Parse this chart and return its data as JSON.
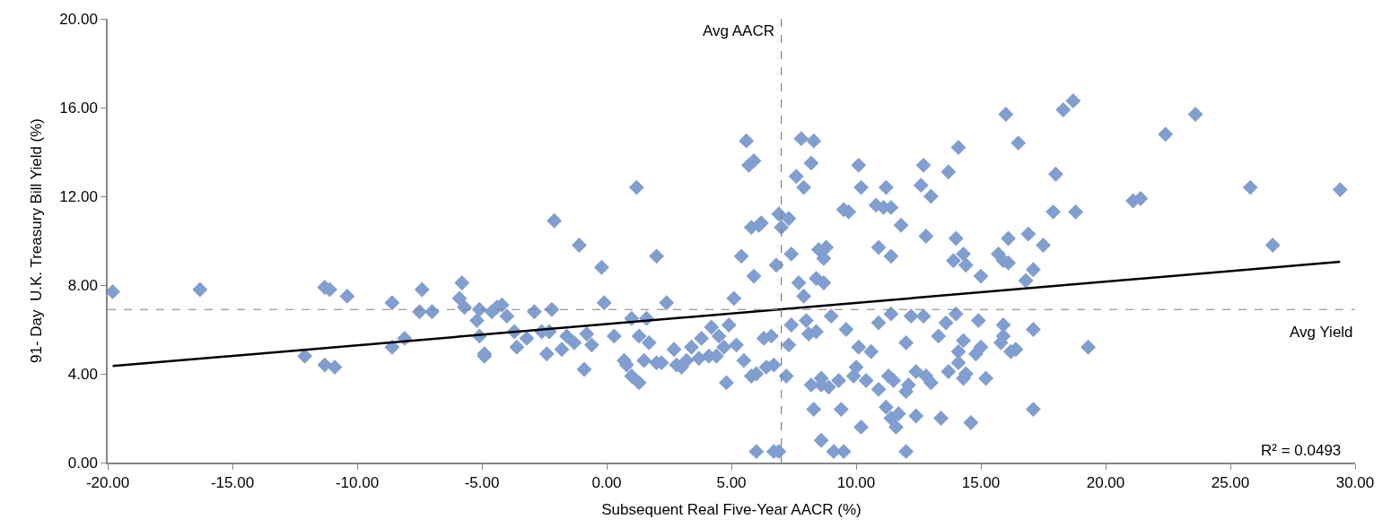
{
  "chart_data": {
    "type": "scatter",
    "xlabel": "Subsequent Real Five-Year AACR (%)",
    "ylabel": "91- Day  U.K. Treasury Bill Yield (%)",
    "xlim": [
      -20,
      30
    ],
    "xticks": [
      {
        "value": -20,
        "label": "-20.00"
      },
      {
        "value": -15,
        "label": "-15.00"
      },
      {
        "value": -10,
        "label": "-10.00"
      },
      {
        "value": -5,
        "label": "-5.00"
      },
      {
        "value": 0,
        "label": "0.00"
      },
      {
        "value": 5,
        "label": "5.00"
      },
      {
        "value": 10,
        "label": "10.00"
      },
      {
        "value": 15,
        "label": "15.00"
      },
      {
        "value": 20,
        "label": "20.00"
      },
      {
        "value": 25,
        "label": "25.00"
      },
      {
        "value": 30,
        "label": "30.00"
      }
    ],
    "ylim": [
      0,
      20
    ],
    "yticks": [
      {
        "value": 0,
        "label": "0.00"
      },
      {
        "value": 4,
        "label": "4.00"
      },
      {
        "value": 8,
        "label": "8.00"
      },
      {
        "value": 12,
        "label": "12.00"
      },
      {
        "value": 16,
        "label": "16.00"
      },
      {
        "value": 20,
        "label": "20.00"
      }
    ],
    "marker": "diamond",
    "series": [
      {
        "color": "#809ecf",
        "x": [
          -19.8,
          -16.3,
          -12.1,
          -11.3,
          -11.1,
          -11.3,
          -10.9,
          -10.4,
          -8.6,
          -8.6,
          -8.1,
          -7.5,
          -7.4,
          -7.0,
          -5.8,
          -5.9,
          -5.7,
          -5.2,
          -5.1,
          -5.1,
          -4.9,
          -4.9,
          -4.6,
          -4.4,
          -4.2,
          -4.0,
          -3.7,
          -3.6,
          -3.2,
          -2.9,
          -2.6,
          -2.4,
          -2.3,
          -2.2,
          -2.1,
          -1.8,
          -1.6,
          -1.3,
          -1.1,
          -0.9,
          -0.8,
          -0.6,
          -0.2,
          -0.1,
          0.3,
          0.7,
          0.8,
          1.0,
          1.0,
          1.2,
          1.3,
          1.3,
          1.5,
          1.6,
          1.7,
          2.0,
          2.0,
          2.2,
          2.4,
          2.7,
          2.8,
          3.0,
          3.2,
          3.4,
          3.7,
          3.8,
          4.1,
          4.2,
          4.4,
          4.5,
          4.7,
          4.8,
          4.9,
          5.1,
          5.2,
          5.4,
          5.5,
          5.6,
          5.7,
          5.8,
          5.8,
          5.9,
          5.9,
          6.0,
          6.0,
          6.1,
          6.2,
          6.3,
          6.4,
          6.6,
          6.7,
          6.7,
          6.8,
          6.9,
          6.9,
          7.0,
          7.2,
          7.3,
          7.4,
          7.3,
          7.4,
          7.6,
          7.7,
          7.9,
          7.8,
          7.9,
          8.0,
          8.2,
          8.3,
          8.1,
          8.2,
          8.3,
          8.4,
          8.4,
          8.5,
          8.6,
          8.6,
          8.6,
          8.7,
          8.8,
          8.7,
          8.9,
          9.0,
          9.1,
          9.3,
          9.4,
          9.5,
          9.5,
          9.7,
          9.6,
          9.9,
          10.0,
          10.1,
          10.2,
          10.1,
          10.2,
          10.4,
          10.6,
          10.8,
          10.9,
          10.9,
          10.9,
          11.1,
          11.2,
          11.3,
          11.2,
          11.4,
          11.4,
          11.4,
          11.5,
          11.4,
          11.6,
          11.7,
          11.8,
          12.0,
          12.0,
          12.1,
          12.0,
          12.2,
          12.4,
          12.4,
          12.6,
          12.7,
          12.7,
          12.8,
          12.8,
          13.0,
          13.0,
          13.3,
          13.4,
          13.6,
          13.7,
          13.7,
          13.9,
          14.0,
          14.0,
          14.1,
          14.1,
          14.1,
          14.3,
          14.3,
          14.3,
          14.4,
          14.4,
          14.6,
          14.8,
          14.9,
          15.0,
          15.0,
          15.2,
          15.7,
          15.8,
          15.9,
          15.9,
          15.9,
          16.0,
          16.1,
          16.1,
          16.2,
          16.4,
          16.5,
          16.8,
          16.9,
          17.1,
          17.1,
          17.1,
          17.5,
          18.0,
          17.9,
          18.3,
          18.7,
          18.8,
          19.3,
          21.1,
          21.4,
          22.4,
          23.6,
          25.8,
          26.7,
          29.4
        ],
        "values": [
          7.7,
          7.8,
          4.8,
          7.9,
          7.8,
          4.4,
          4.3,
          7.5,
          7.2,
          5.2,
          5.6,
          6.8,
          7.8,
          6.8,
          8.1,
          7.4,
          7.0,
          6.4,
          5.7,
          6.9,
          4.9,
          4.8,
          6.8,
          7.0,
          7.1,
          6.6,
          5.9,
          5.2,
          5.6,
          6.8,
          5.9,
          4.9,
          5.9,
          6.9,
          10.9,
          5.1,
          5.7,
          5.4,
          9.8,
          4.2,
          5.8,
          5.3,
          8.8,
          7.2,
          5.7,
          4.6,
          4.4,
          6.5,
          3.9,
          12.4,
          5.7,
          3.6,
          4.6,
          6.5,
          5.4,
          4.5,
          9.3,
          4.5,
          7.2,
          5.1,
          4.4,
          4.3,
          4.6,
          5.2,
          4.7,
          5.6,
          4.8,
          6.1,
          4.8,
          5.7,
          5.2,
          3.6,
          6.2,
          7.4,
          5.3,
          9.3,
          4.6,
          14.5,
          13.4,
          3.9,
          10.6,
          13.6,
          8.4,
          0.5,
          4.0,
          10.7,
          10.8,
          5.6,
          4.3,
          5.7,
          4.4,
          0.5,
          8.9,
          0.5,
          11.2,
          10.6,
          3.9,
          5.3,
          6.2,
          11.0,
          9.4,
          12.9,
          8.1,
          7.5,
          14.6,
          12.4,
          6.4,
          13.5,
          14.5,
          5.8,
          3.5,
          2.4,
          5.9,
          8.3,
          9.6,
          3.8,
          3.5,
          1.0,
          9.2,
          9.7,
          8.1,
          3.4,
          6.6,
          0.5,
          3.7,
          2.4,
          0.5,
          11.4,
          11.3,
          6.0,
          3.9,
          4.3,
          13.4,
          12.4,
          5.2,
          1.6,
          3.7,
          5.0,
          11.6,
          9.7,
          6.3,
          3.3,
          11.5,
          12.4,
          3.9,
          2.5,
          9.3,
          11.5,
          6.7,
          3.7,
          2.0,
          1.6,
          2.2,
          10.7,
          5.4,
          3.2,
          3.5,
          0.5,
          6.6,
          2.1,
          4.1,
          12.5,
          6.6,
          13.4,
          10.2,
          3.9,
          3.6,
          12.0,
          5.7,
          2.0,
          6.3,
          13.1,
          4.1,
          9.1,
          10.1,
          6.7,
          4.5,
          14.2,
          5.0,
          9.4,
          3.8,
          5.5,
          4.0,
          8.9,
          1.8,
          4.9,
          6.4,
          5.2,
          8.4,
          3.8,
          9.4,
          5.4,
          6.2,
          5.7,
          9.1,
          15.7,
          9.0,
          10.1,
          5.0,
          5.1,
          14.4,
          8.2,
          10.3,
          6.0,
          8.7,
          2.4,
          9.8,
          13.0,
          11.3,
          15.9,
          16.3,
          11.3,
          5.2,
          11.8,
          11.9,
          14.8,
          15.7,
          12.4,
          9.8,
          12.3
        ]
      },
      {
        "type": "line",
        "color": "#000000",
        "marker": "none",
        "line_style": "solid",
        "x": [
          -19.8,
          29.4
        ],
        "values": [
          4.35,
          9.05
        ]
      }
    ],
    "ref_lines": [
      {
        "axis": "x",
        "value": 7.0,
        "label": "Avg AACR",
        "color": "#808080",
        "line_style": "dashed"
      },
      {
        "axis": "y",
        "value": 6.9,
        "label": "Avg Yield",
        "color": "#808080",
        "line_style": "dashed"
      }
    ],
    "annotations": [
      "R² = 0.0493"
    ]
  }
}
